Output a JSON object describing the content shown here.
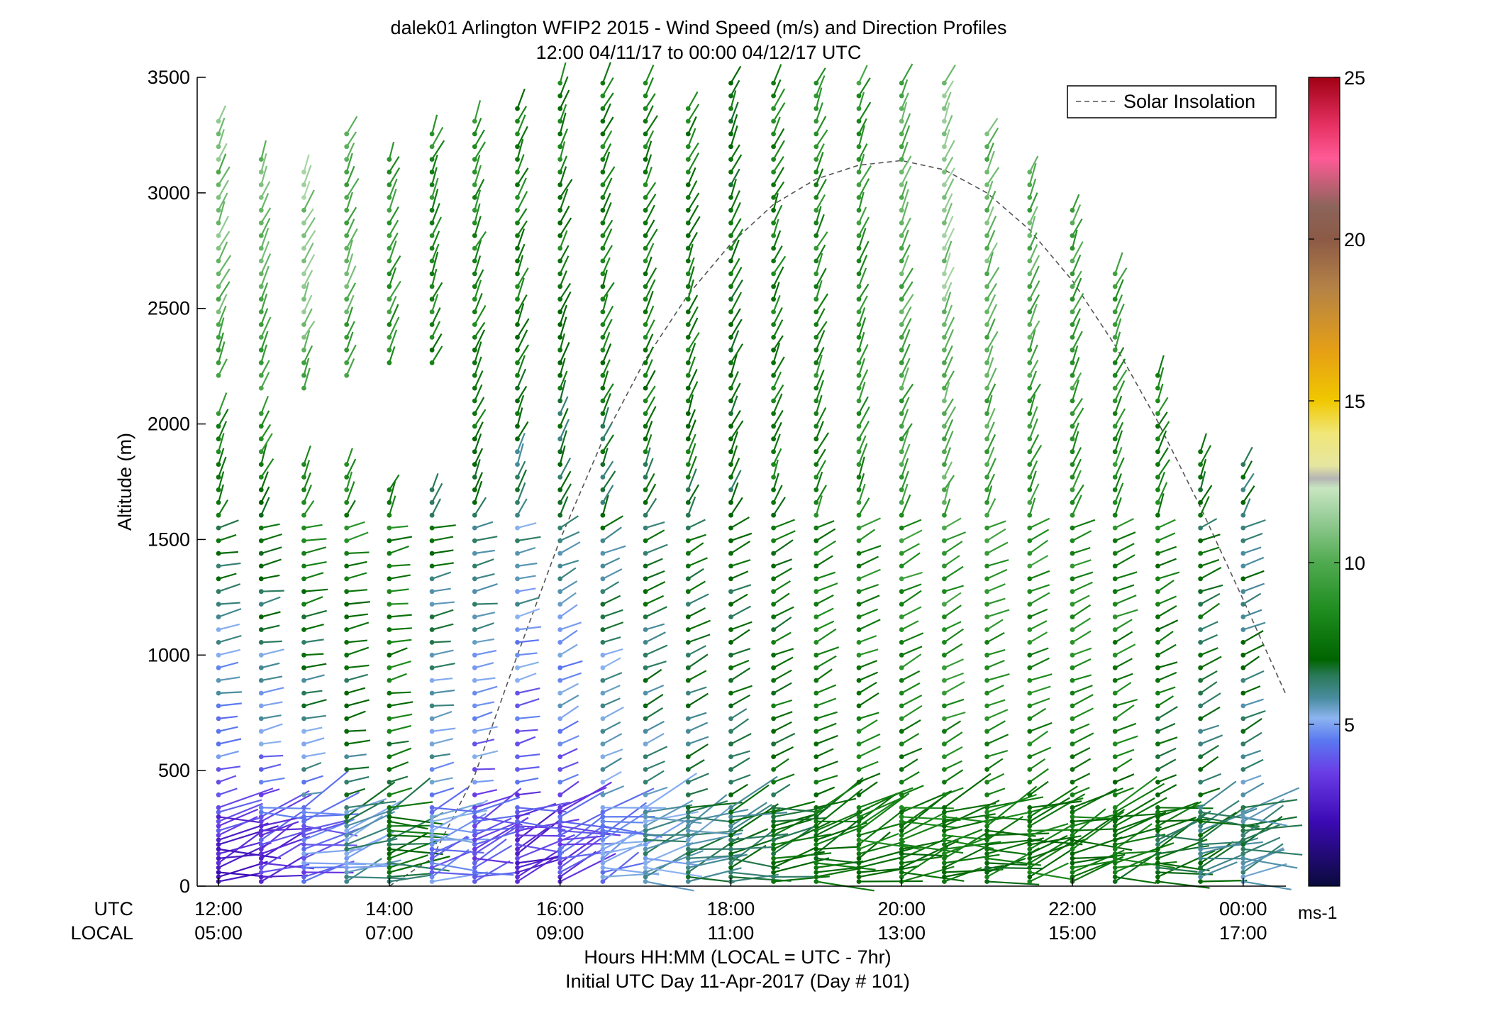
{
  "chart_data": {
    "type": "wind-barb-profile",
    "title": "dalek01 Arlington WFIP2 2015 - Wind Speed (m/s) and Direction Profiles",
    "subtitle": "12:00 04/11/17 to 00:00 04/12/17  UTC",
    "ylabel": "Altitude (m)",
    "xlabel": "Hours HH:MM  (LOCAL = UTC - 7hr)",
    "xlabel2": "Initial UTC Day 11-Apr-2017 (Day # 101)",
    "ylim": [
      0,
      3500
    ],
    "xlim_hours_utc": [
      11.75,
      24.5
    ],
    "yticks": [
      0,
      500,
      1000,
      1500,
      2000,
      2500,
      3000,
      3500
    ],
    "ytick_labels": [
      "0",
      "500",
      "1000",
      "1500",
      "2000",
      "2500",
      "3000",
      "3500"
    ],
    "xtick_hours": [
      12,
      14,
      16,
      18,
      20,
      22,
      24
    ],
    "row_labels": {
      "utc": "UTC",
      "local": "LOCAL"
    },
    "xtick_utc_labels": [
      "12:00",
      "14:00",
      "16:00",
      "18:00",
      "20:00",
      "22:00",
      "00:00"
    ],
    "xtick_local_labels": [
      "05:00",
      "07:00",
      "09:00",
      "11:00",
      "13:00",
      "15:00",
      "17:00"
    ],
    "legend": {
      "label": "Solar Insolation",
      "placement": "top-right",
      "style": "dashed gray"
    },
    "solar_insolation": {
      "x_hours_utc": [
        14.0,
        14.5,
        15.0,
        15.5,
        16.0,
        16.5,
        17.0,
        17.5,
        18.0,
        18.5,
        19.0,
        19.5,
        20.0,
        20.5,
        21.0,
        21.5,
        22.0,
        22.5,
        23.0,
        23.5,
        24.0,
        24.5
      ],
      "y_altitude_scale": [
        0,
        120,
        480,
        1000,
        1500,
        1930,
        2280,
        2560,
        2780,
        2950,
        3060,
        3120,
        3140,
        3100,
        3000,
        2840,
        2620,
        2340,
        2010,
        1640,
        1240,
        830
      ]
    },
    "colorbar": {
      "label": "ms-1",
      "min": 0,
      "max": 25,
      "ticks": [
        5,
        10,
        15,
        20,
        25
      ],
      "tick_labels": [
        "5",
        "10",
        "15",
        "20",
        "25"
      ],
      "stops": [
        {
          "v": 0.0,
          "color": "#0a0a3c"
        },
        {
          "v": 2.0,
          "color": "#3c0ab4"
        },
        {
          "v": 3.5,
          "color": "#6a3ce6"
        },
        {
          "v": 4.5,
          "color": "#5a78f0"
        },
        {
          "v": 5.2,
          "color": "#8cb4f0"
        },
        {
          "v": 5.8,
          "color": "#4a8ca0"
        },
        {
          "v": 6.5,
          "color": "#2a7a5a"
        },
        {
          "v": 7.0,
          "color": "#006400"
        },
        {
          "v": 8.5,
          "color": "#1e8c1e"
        },
        {
          "v": 10.0,
          "color": "#50aa50"
        },
        {
          "v": 11.5,
          "color": "#9ed09e"
        },
        {
          "v": 12.3,
          "color": "#c8e6c0"
        },
        {
          "v": 12.6,
          "color": "#b4b4b4"
        },
        {
          "v": 13.0,
          "color": "#e6e6a0"
        },
        {
          "v": 14.0,
          "color": "#f0e678"
        },
        {
          "v": 15.0,
          "color": "#f0c800"
        },
        {
          "v": 16.5,
          "color": "#e6a014"
        },
        {
          "v": 18.5,
          "color": "#b48246"
        },
        {
          "v": 20.0,
          "color": "#8c5a46"
        },
        {
          "v": 21.0,
          "color": "#8c645a"
        },
        {
          "v": 22.5,
          "color": "#ff5a96"
        },
        {
          "v": 23.5,
          "color": "#e63264"
        },
        {
          "v": 25.0,
          "color": "#a00014"
        }
      ]
    },
    "wind_profiles": {
      "times_hours_utc": [
        12.0,
        12.5,
        13.0,
        13.5,
        14.0,
        14.5,
        15.0,
        15.5,
        16.0,
        16.5,
        17.0,
        17.5,
        18.0,
        18.5,
        19.0,
        19.5,
        20.0,
        20.5,
        21.0,
        21.5,
        22.0,
        22.5,
        23.0,
        23.5,
        24.0
      ],
      "top_altitude_m": [
        3320,
        3180,
        3110,
        3260,
        3180,
        3260,
        3330,
        3400,
        3480,
        3480,
        3480,
        3400,
        3480,
        3480,
        3480,
        3480,
        3480,
        3480,
        3260,
        3110,
        2960,
        2680,
        2240,
        1910,
        1840
      ],
      "gap_altitude_m": [
        [
          2060,
          2200
        ],
        [
          2060,
          2150
        ],
        [
          1840,
          2110
        ],
        [
          1840,
          2190
        ],
        [
          1760,
          2230
        ],
        [
          1760,
          2230
        ],
        null,
        null,
        null,
        null,
        null,
        null,
        null,
        null,
        null,
        null,
        null,
        null,
        null,
        null,
        null,
        null,
        null,
        null,
        null
      ],
      "typical_speed_low_ms": [
        2.5,
        3.0,
        4.0,
        5.5,
        7.0,
        4.5,
        3.5,
        3.0,
        3.5,
        4.5,
        5.5,
        6.0,
        6.5,
        7.0,
        7.5,
        7.5,
        7.5,
        7.5,
        7.5,
        7.5,
        7.5,
        7.5,
        7.0,
        6.5,
        6.0
      ],
      "typical_speed_high_ms": [
        10.5,
        10.5,
        11.0,
        10.0,
        9.0,
        8.5,
        8.5,
        8.0,
        8.0,
        8.0,
        8.0,
        8.0,
        7.5,
        8.0,
        8.5,
        9.0,
        10.0,
        11.0,
        10.5,
        10.0,
        9.5,
        9.0,
        8.5,
        7.5,
        7.0
      ]
    }
  }
}
